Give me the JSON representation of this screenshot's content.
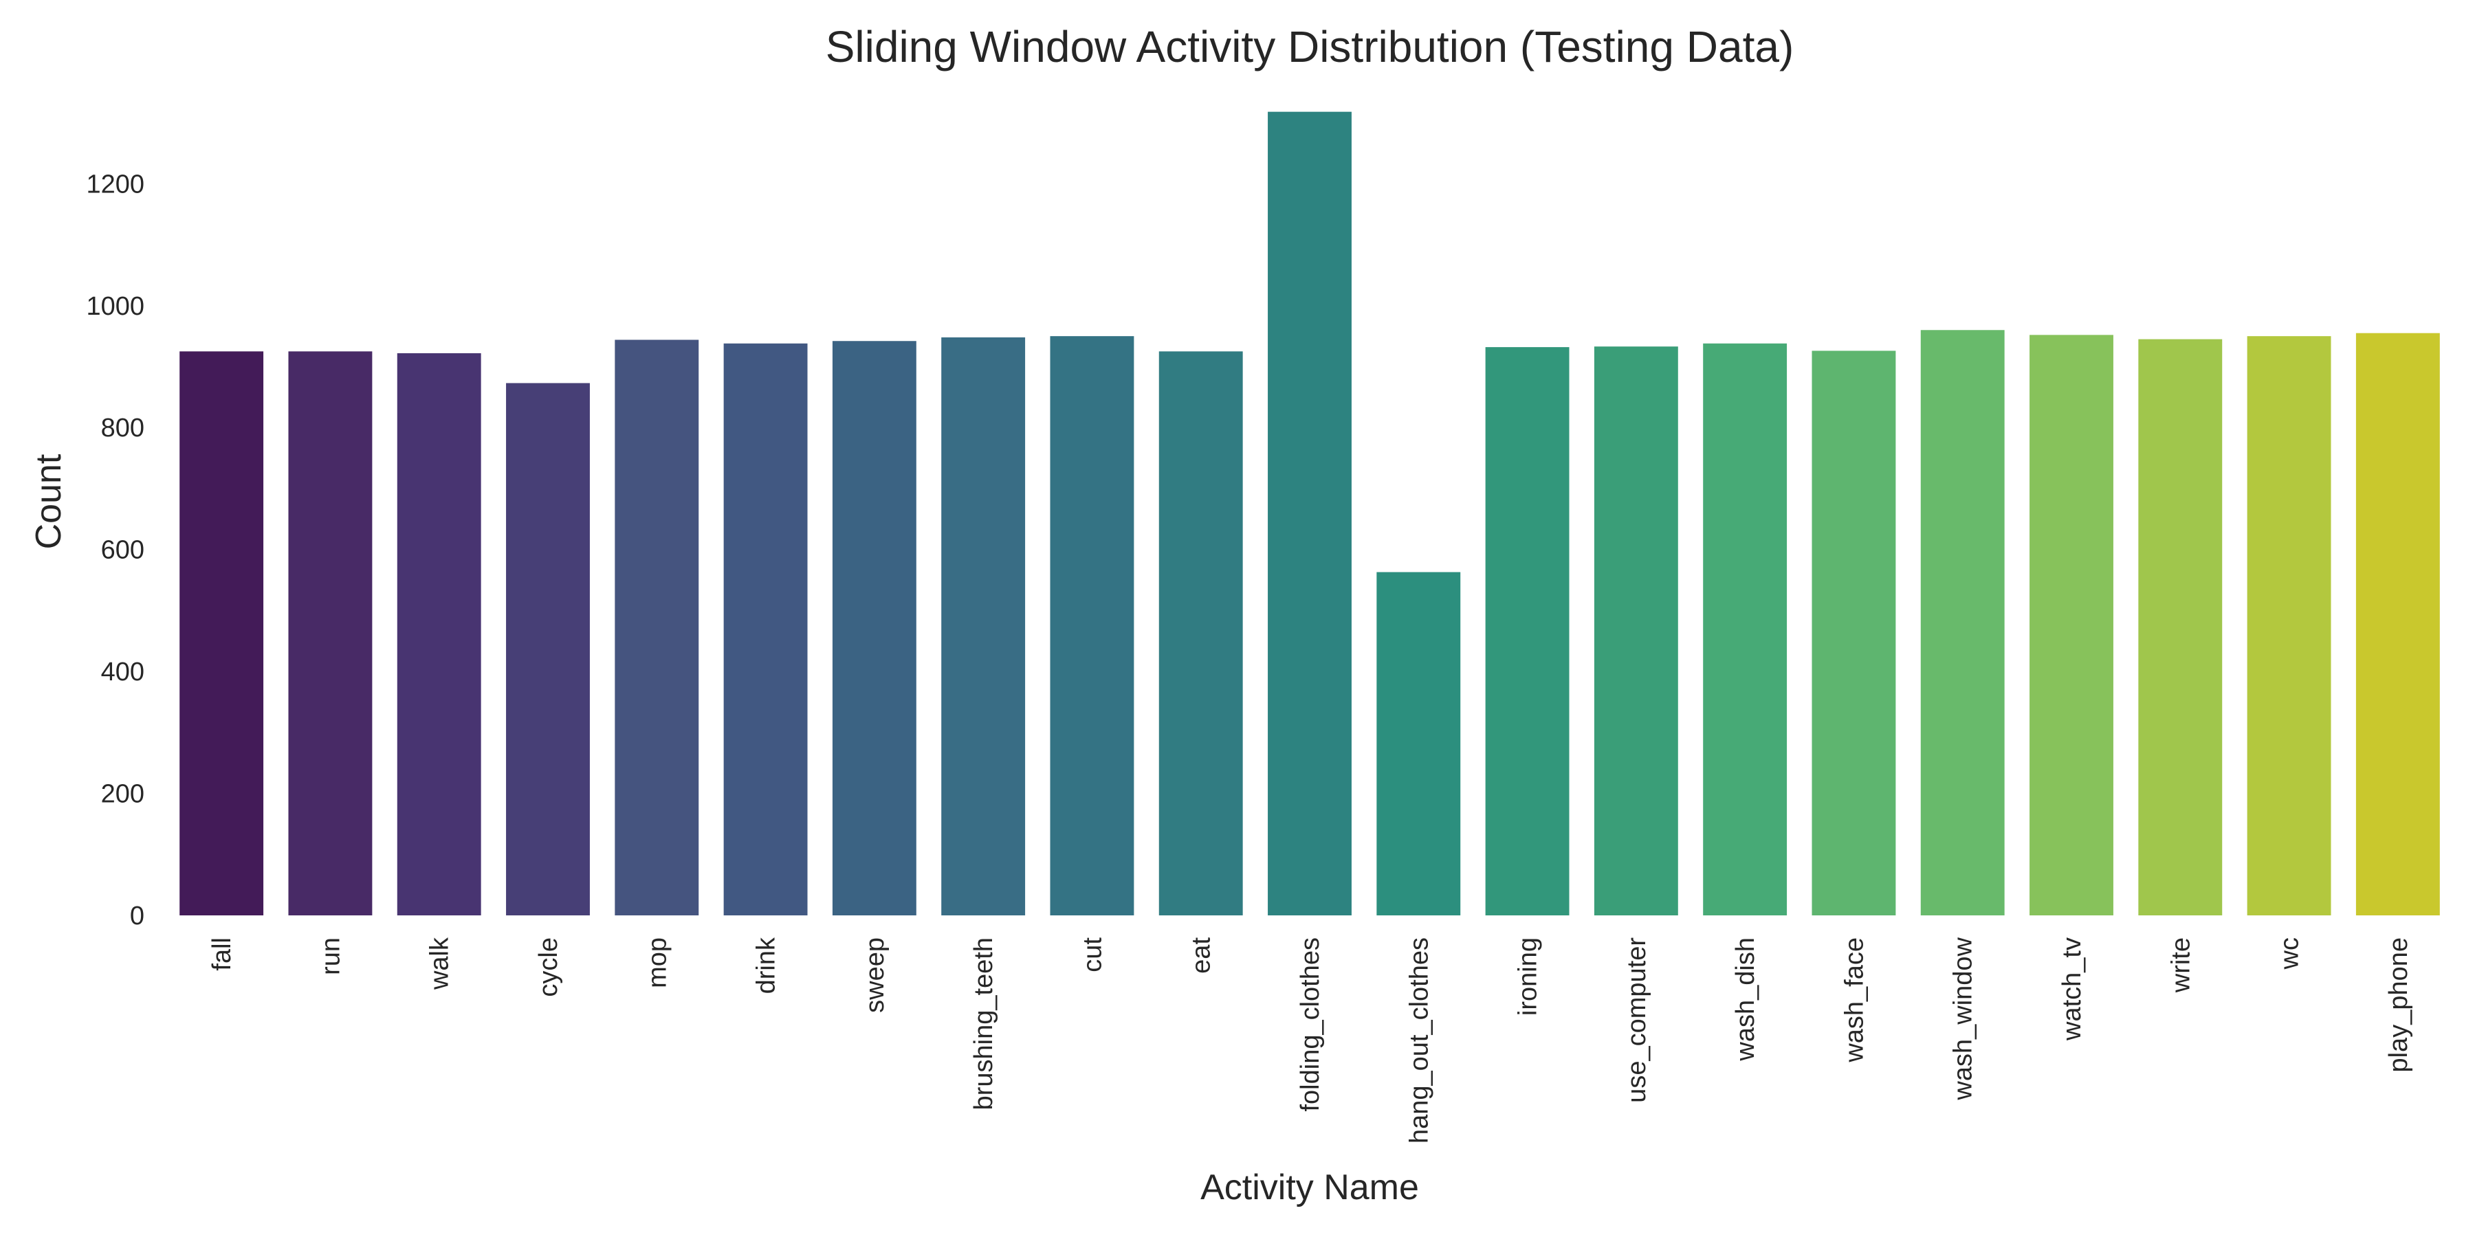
{
  "chart_data": {
    "type": "bar",
    "title": "Sliding Window Activity Distribution (Testing Data)",
    "xlabel": "Activity Name",
    "ylabel": "Count",
    "ylim": [
      0,
      1330
    ],
    "yticks": [
      0,
      200,
      400,
      600,
      800,
      1000,
      1200
    ],
    "grid": false,
    "categories": [
      "fall",
      "run",
      "walk",
      "cycle",
      "mop",
      "drink",
      "sweep",
      "brushing_teeth",
      "cut",
      "eat",
      "folding_clothes",
      "hang_out_clothes",
      "ironing",
      "use_computer",
      "wash_dish",
      "wash_face",
      "wash_window",
      "watch_tv",
      "write",
      "wc",
      "play_phone"
    ],
    "values": [
      925,
      925,
      922,
      873,
      944,
      938,
      942,
      948,
      950,
      925,
      1318,
      563,
      932,
      933,
      938,
      926,
      960,
      952,
      945,
      950,
      955
    ],
    "colors": [
      "#431b58",
      "#482a66",
      "#483471",
      "#473f76",
      "#45547f",
      "#415882",
      "#3b6383",
      "#396d85",
      "#347384",
      "#317c82",
      "#2d8380",
      "#2c8f7e",
      "#32977b",
      "#3a9e78",
      "#47aa76",
      "#5eb56f",
      "#68ba6b",
      "#87c25b",
      "#a0c64c",
      "#b3c83e",
      "#c9c82d"
    ]
  }
}
